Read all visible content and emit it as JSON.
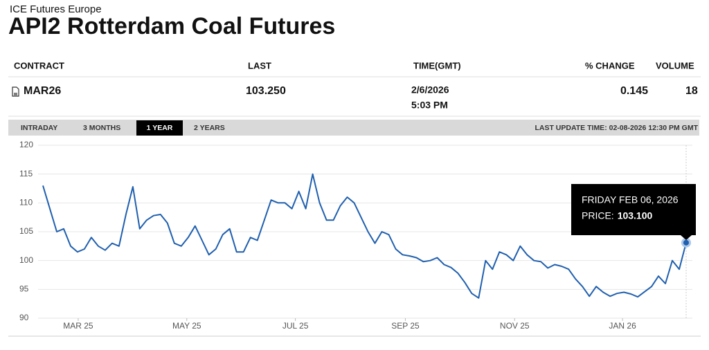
{
  "header": {
    "exchange": "ICE Futures Europe",
    "title": "API2 Rotterdam Coal Futures"
  },
  "table": {
    "columns": [
      "CONTRACT",
      "LAST",
      "TIME(GMT)",
      "% CHANGE",
      "VOLUME"
    ],
    "row": {
      "contract": "MAR26",
      "last": "103.250",
      "date": "2/6/2026",
      "time": "5:03 PM",
      "change": "0.145",
      "volume": "18"
    }
  },
  "tabs": [
    {
      "label": "INTRADAY",
      "active": false
    },
    {
      "label": "3 MONTHS",
      "active": false
    },
    {
      "label": "1 YEAR",
      "active": true
    },
    {
      "label": "2 YEARS",
      "active": false
    }
  ],
  "last_update": "LAST UPDATE TIME: 02-08-2026 12:30 PM GMT",
  "chart_data": {
    "type": "line",
    "color": "#1f5fae",
    "values": [
      113,
      109,
      105,
      105.5,
      102.5,
      101.5,
      102,
      104,
      102.5,
      101.8,
      103,
      102.5,
      108,
      112.8,
      105.5,
      107,
      107.8,
      108,
      106.5,
      103,
      102.5,
      104,
      106,
      103.5,
      101,
      102,
      104.5,
      105.5,
      101.5,
      101.5,
      104,
      103.5,
      107,
      110.5,
      110,
      110,
      109,
      112,
      109,
      115,
      110,
      107,
      107,
      109.5,
      111,
      110,
      107.5,
      105,
      103,
      105,
      104.5,
      102,
      101,
      100.8,
      100.5,
      99.8,
      100,
      100.5,
      99.3,
      98.8,
      97.8,
      96.2,
      94.3,
      93.5,
      100,
      98.5,
      101.5,
      101,
      100,
      102.5,
      101,
      100,
      99.8,
      98.7,
      99.3,
      99,
      98.5,
      96.8,
      95.5,
      93.8,
      95.5,
      94.5,
      93.8,
      94.3,
      94.5,
      94.2,
      93.7,
      94.6,
      95.5,
      97.3,
      96,
      100,
      98.5,
      103.1
    ],
    "xlim": [
      0,
      93
    ],
    "xticks": [
      {
        "value": 5.1,
        "label": "MAR 25"
      },
      {
        "value": 20.8,
        "label": "MAY 25"
      },
      {
        "value": 36.5,
        "label": "JUL 25"
      },
      {
        "value": 52.4,
        "label": "SEP 25"
      },
      {
        "value": 68.2,
        "label": "NOV 25"
      },
      {
        "value": 83.8,
        "label": "JAN 26"
      }
    ],
    "ylim": [
      90,
      120
    ],
    "yticks": [
      90,
      95,
      100,
      105,
      110,
      115,
      120
    ],
    "grid": true,
    "tooltip": {
      "date": "FRIDAY FEB 06, 2026",
      "label": "PRICE:",
      "price": "103.100"
    }
  }
}
